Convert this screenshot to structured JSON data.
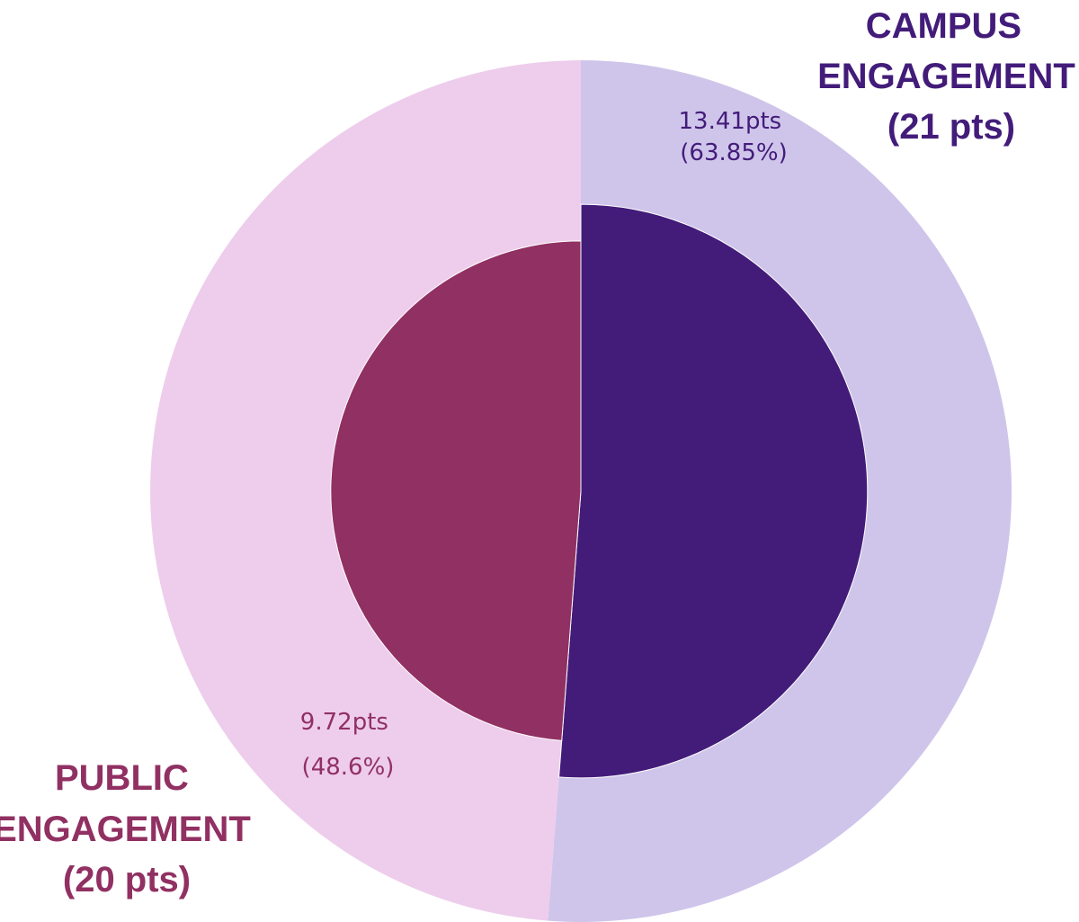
{
  "chart_data": {
    "type": "pie",
    "title": "",
    "categories": [
      {
        "name": "CAMPUS ENGAGEMENT",
        "label_lines": [
          "CAMPUS",
          "ENGAGEMENT",
          "(21 pts)"
        ],
        "max_points": 21,
        "earned_points": 13.41,
        "earned_percent": 63.85,
        "value_lines": [
          "13.41pts",
          "(63.85%)"
        ],
        "outer_color": "#cfc5ea",
        "inner_color": "#431c7a",
        "label_color": "#431c7a"
      },
      {
        "name": "PUBLIC ENGAGEMENT",
        "label_lines": [
          "PUBLIC",
          "ENGAGEMENT",
          "(20 pts)"
        ],
        "max_points": 20,
        "earned_points": 9.72,
        "earned_percent": 48.6,
        "value_lines": [
          "9.72pts",
          "(48.6%)"
        ],
        "outer_color": "#eecdec",
        "inner_color": "#913062",
        "label_color": "#913062"
      }
    ]
  }
}
